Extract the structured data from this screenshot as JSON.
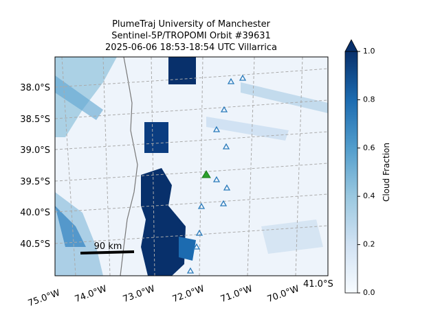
{
  "title": [
    "PlumeTraj    University of Manchester",
    "Sentinel-5P/TROPOMI Orbit #39631",
    "2025-06-06   18:53-18:54 UTC   Villarrica"
  ],
  "map": {
    "lat_labels": [
      "38.0°S",
      "38.5°S",
      "39.0°S",
      "39.5°S",
      "40.0°S",
      "40.5°S",
      "41.0°S"
    ],
    "lon_labels": [
      "75.0°W",
      "74.0°W",
      "73.0°W",
      "72.0°W",
      "71.0°W",
      "70.0°W"
    ],
    "scale_bar": "90 km"
  },
  "colorbar": {
    "label": "Cloud Fraction",
    "range": [
      0,
      1
    ],
    "ticks": [
      {
        "value": 0,
        "label": "0.0"
      },
      {
        "value": 0.2,
        "label": "0.2"
      },
      {
        "value": 0.4,
        "label": "0.4"
      },
      {
        "value": 0.6,
        "label": "0.6"
      },
      {
        "value": 0.8,
        "label": "0.8"
      },
      {
        "value": 1,
        "label": "1.0"
      }
    ]
  }
}
